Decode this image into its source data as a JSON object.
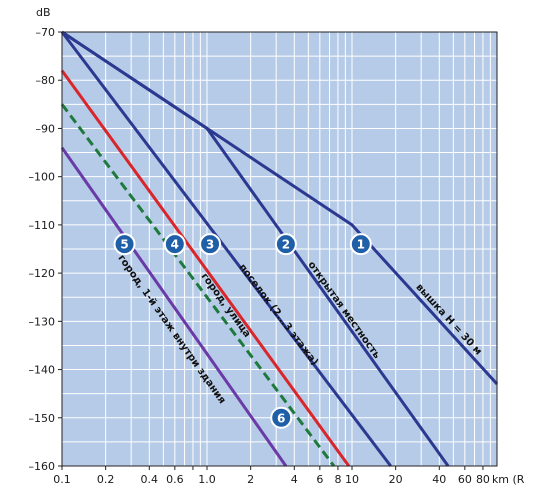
{
  "chart_data": {
    "type": "line",
    "title": "",
    "ylabel": "dB",
    "xlabel": "km (R)",
    "x_scale": "log",
    "xlim": [
      0.1,
      100
    ],
    "ylim": [
      -160,
      -70
    ],
    "grid": true,
    "x_ticks": [
      {
        "value": 0.1,
        "label": "0.1"
      },
      {
        "value": 0.2,
        "label": "0.2"
      },
      {
        "value": 0.4,
        "label": "0.4"
      },
      {
        "value": 0.6,
        "label": "0.6"
      },
      {
        "value": 0.8,
        "label": ""
      },
      {
        "value": 1.0,
        "label": "1.0"
      },
      {
        "value": 2,
        "label": "2"
      },
      {
        "value": 4,
        "label": "4"
      },
      {
        "value": 6,
        "label": "6"
      },
      {
        "value": 8,
        "label": "8"
      },
      {
        "value": 10,
        "label": "10"
      },
      {
        "value": 20,
        "label": "20"
      },
      {
        "value": 40,
        "label": "40"
      },
      {
        "value": 60,
        "label": "60"
      },
      {
        "value": 80,
        "label": "80"
      }
    ],
    "x_unit_label": "km (R",
    "y_ticks": [
      -70,
      -80,
      -90,
      -100,
      -110,
      -120,
      -130,
      -140,
      -150,
      -160
    ],
    "y_unit_label": "dB",
    "series": [
      {
        "id": "1",
        "name": "вышка H = 30 м",
        "color": "#2b3990",
        "dash": false,
        "points": [
          [
            0.1,
            -70
          ],
          [
            1.0,
            -90
          ],
          [
            10,
            -110
          ],
          [
            100,
            -143
          ]
        ]
      },
      {
        "id": "2",
        "name": "открытая местность",
        "color": "#2b3990",
        "dash": false,
        "points": [
          [
            0.1,
            -70
          ],
          [
            1.0,
            -90
          ],
          [
            46,
            -160
          ]
        ]
      },
      {
        "id": "3",
        "name": "поселок (2...3 этажа)",
        "color": "#2b3990",
        "dash": false,
        "points": [
          [
            0.1,
            -70
          ],
          [
            18.5,
            -160
          ]
        ]
      },
      {
        "id": "4",
        "name": "город, улица",
        "color": "#d9262b",
        "dash": false,
        "points": [
          [
            0.1,
            -78
          ],
          [
            9.5,
            -160
          ]
        ]
      },
      {
        "id": "6",
        "name": "",
        "color": "#1e7a3c",
        "dash": true,
        "points": [
          [
            0.1,
            -85
          ],
          [
            7.5,
            -160
          ]
        ]
      },
      {
        "id": "5",
        "name": "город, 1-й этаж внутри здания",
        "color": "#6a3aa6",
        "dash": false,
        "points": [
          [
            0.1,
            -94
          ],
          [
            3.5,
            -160
          ]
        ]
      }
    ],
    "badges": [
      {
        "label": "1",
        "x": 11.5,
        "y": -114
      },
      {
        "label": "2",
        "x": 3.5,
        "y": -114
      },
      {
        "label": "3",
        "x": 1.05,
        "y": -114
      },
      {
        "label": "4",
        "x": 0.6,
        "y": -114
      },
      {
        "label": "5",
        "x": 0.27,
        "y": -114
      },
      {
        "label": "6",
        "x": 3.25,
        "y": -150
      }
    ],
    "annotations": [
      {
        "series": "1",
        "text": "вышка H = 30 м",
        "x": 45,
        "y": -130
      },
      {
        "series": "2",
        "text": "открытая местность",
        "x": 8.5,
        "y": -128
      },
      {
        "series": "3",
        "text": "поселок (2...3 этажа)",
        "x": 3.0,
        "y": -129
      },
      {
        "series": "4",
        "text": "город, улица",
        "x": 1.3,
        "y": -127
      },
      {
        "series": "5",
        "text": "город, 1-й этаж внутри здания",
        "x": 0.55,
        "y": -132
      }
    ]
  }
}
